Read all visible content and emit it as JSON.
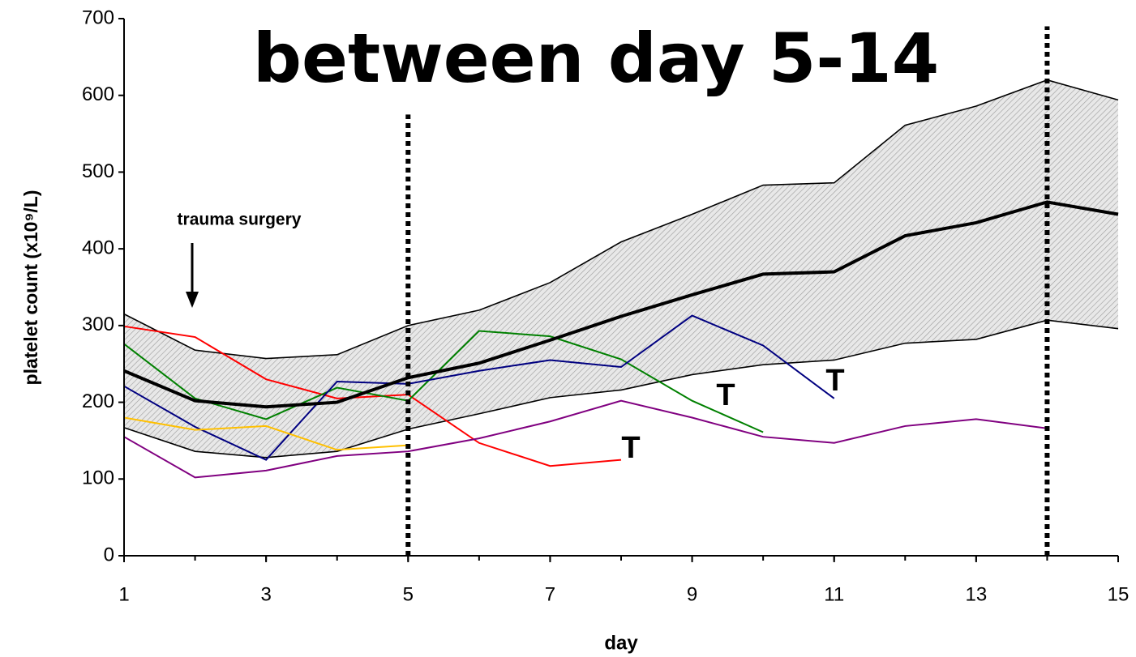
{
  "chart_data": {
    "type": "line",
    "title": "between day 5-14",
    "annotation": "trauma surgery",
    "t_labels": [
      "T",
      "T",
      "T"
    ],
    "xlabel": "day",
    "ylabel": "platelet count (x10⁹/L)",
    "x": [
      1,
      2,
      3,
      4,
      5,
      6,
      7,
      8,
      9,
      10,
      11,
      12,
      13,
      14,
      15
    ],
    "xlim": [
      1,
      15
    ],
    "xticks": [
      1,
      3,
      5,
      7,
      9,
      11,
      13,
      15
    ],
    "ylim": [
      0,
      700
    ],
    "yticks": [
      0,
      100,
      200,
      300,
      400,
      500,
      600,
      700
    ],
    "vlines": [
      5,
      14
    ],
    "band": {
      "color": "#000000",
      "upper": [
        315,
        268,
        257,
        262,
        300,
        320,
        356,
        409,
        445,
        483,
        486,
        561,
        586,
        620,
        594
      ],
      "lower": [
        167,
        136,
        128,
        136,
        165,
        185,
        206,
        216,
        236,
        249,
        255,
        277,
        282,
        307,
        296
      ]
    },
    "series": [
      {
        "color": "#000000",
        "values": [
          241,
          202,
          194,
          200,
          232,
          251,
          281,
          312,
          340,
          367,
          370,
          417,
          434,
          461,
          445
        ]
      },
      {
        "color": "#ff0000",
        "values": [
          299,
          285,
          230,
          205,
          210,
          147,
          117,
          125,
          null,
          null,
          null,
          null,
          null,
          null,
          null
        ]
      },
      {
        "color": "#008000",
        "values": [
          276,
          205,
          178,
          219,
          202,
          293,
          286,
          256,
          202,
          161,
          null,
          null,
          null,
          null,
          null
        ]
      },
      {
        "color": "#000080",
        "values": [
          221,
          168,
          125,
          227,
          224,
          241,
          255,
          246,
          313,
          274,
          205,
          null,
          null,
          null,
          null
        ]
      },
      {
        "color": "#ffc000",
        "values": [
          180,
          164,
          169,
          138,
          144,
          null,
          null,
          null,
          null,
          null,
          null,
          null,
          null,
          null,
          null
        ]
      },
      {
        "color": "#800080",
        "values": [
          155,
          102,
          111,
          130,
          136,
          153,
          175,
          202,
          180,
          155,
          147,
          169,
          178,
          166,
          null
        ]
      }
    ]
  }
}
